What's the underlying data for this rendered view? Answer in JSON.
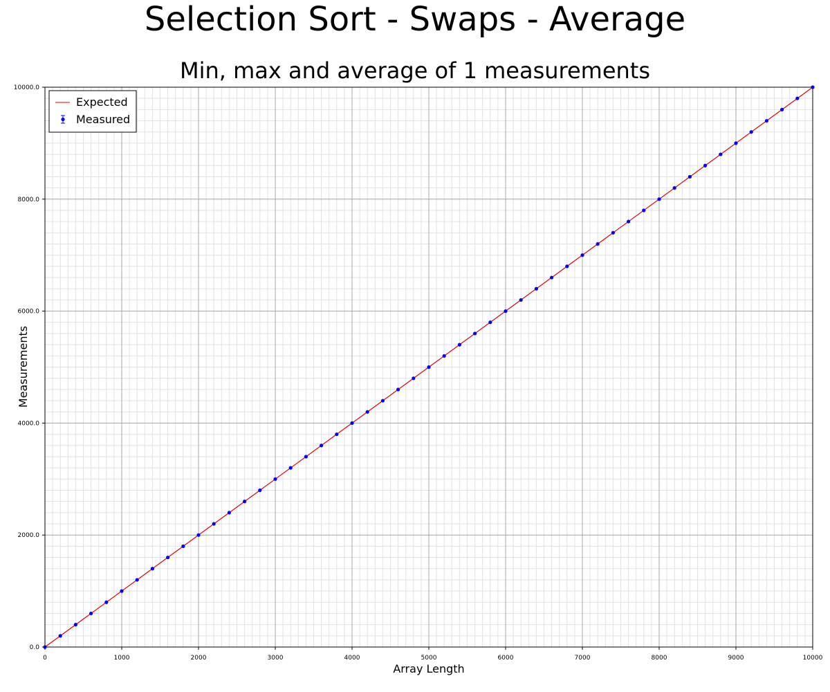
{
  "chart_data": {
    "type": "scatter",
    "title": "Selection Sort - Swaps - Average",
    "subtitle": "Min, max and average of 1 measurements",
    "xlabel": "Array Length",
    "ylabel": "Measurements",
    "xlim": [
      0,
      10000
    ],
    "ylim": [
      0,
      10000
    ],
    "x_ticks": [
      "0",
      "1000",
      "2000",
      "3000",
      "4000",
      "5000",
      "6000",
      "7000",
      "8000",
      "9000",
      "10000"
    ],
    "y_ticks": [
      "0.0",
      "2000.0",
      "4000.0",
      "6000.0",
      "8000.0",
      "10000.0"
    ],
    "grid": true,
    "legend_position": "top-left",
    "series": [
      {
        "name": "Expected",
        "kind": "line",
        "color": "#e00000",
        "x": [
          0,
          10000
        ],
        "y": [
          0,
          10000
        ]
      },
      {
        "name": "Measured",
        "kind": "points-with-errorbars",
        "color": "#0000ff",
        "x": [
          0,
          200,
          400,
          600,
          800,
          1000,
          1200,
          1400,
          1600,
          1800,
          2000,
          2200,
          2400,
          2600,
          2800,
          3000,
          3200,
          3400,
          3600,
          3800,
          4000,
          4200,
          4400,
          4600,
          4800,
          5000,
          5200,
          5400,
          5600,
          5800,
          6000,
          6200,
          6400,
          6600,
          6800,
          7000,
          7200,
          7400,
          7600,
          7800,
          8000,
          8200,
          8400,
          8600,
          8800,
          9000,
          9200,
          9400,
          9600,
          9800,
          10000
        ],
        "y": [
          0,
          200,
          400,
          600,
          800,
          1000,
          1200,
          1400,
          1600,
          1800,
          2000,
          2200,
          2400,
          2600,
          2800,
          3000,
          3200,
          3400,
          3600,
          3800,
          4000,
          4200,
          4400,
          4600,
          4800,
          5000,
          5200,
          5400,
          5600,
          5800,
          6000,
          6200,
          6400,
          6600,
          6800,
          7000,
          7200,
          7400,
          7600,
          7800,
          8000,
          8200,
          8400,
          8600,
          8800,
          9000,
          9200,
          9400,
          9600,
          9800,
          10000
        ]
      }
    ]
  }
}
